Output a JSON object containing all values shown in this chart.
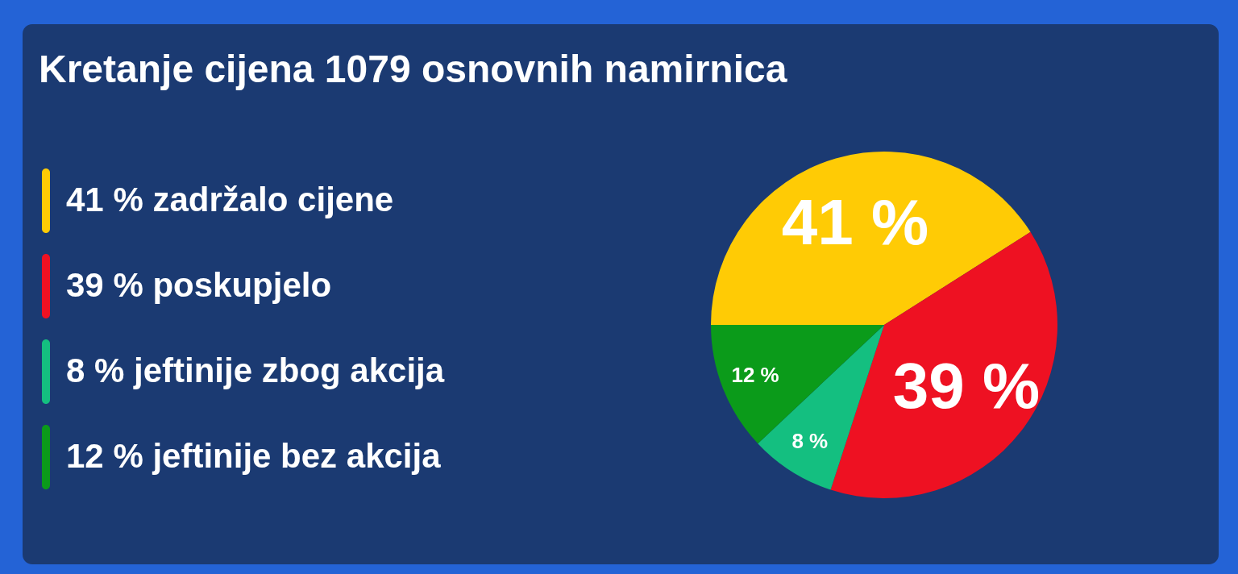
{
  "chart_data": {
    "type": "pie",
    "title": "Kretanje cijena 1079 osnovnih namirnica",
    "categories": [
      "41 % zadržalo cijene",
      "39 % poskupjelo",
      "8 % jeftinije zbog akcija",
      "12 % jeftinije bez akcija"
    ],
    "values": [
      41,
      39,
      8,
      12
    ],
    "colors": [
      "#ffcb05",
      "#ee1122",
      "#14bf80",
      "#0b9b1a"
    ],
    "value_labels": [
      "41 %",
      "39 %",
      "8 %",
      "12 %"
    ],
    "legend": "left"
  }
}
